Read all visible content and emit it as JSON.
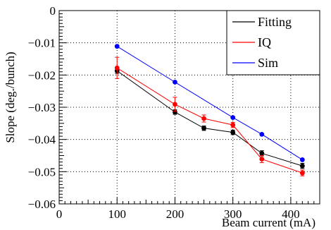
{
  "chart_data": {
    "type": "line",
    "title": "",
    "xlabel": "Beam current (mA)",
    "ylabel": "Slope (deg./bunch)",
    "xlim": [
      0,
      450
    ],
    "ylim": [
      -0.06,
      0
    ],
    "x_ticks": [
      0,
      100,
      200,
      300,
      400
    ],
    "x_tick_labels": [
      "0",
      "100",
      "200",
      "300",
      "400"
    ],
    "y_ticks": [
      0,
      -0.01,
      -0.02,
      -0.03,
      -0.04,
      -0.05,
      -0.06
    ],
    "y_tick_labels": [
      "0",
      "−0.01",
      "−0.02",
      "−0.03",
      "−0.04",
      "−0.05",
      "−0.06"
    ],
    "grid": true,
    "legend_position": "top-right",
    "series": [
      {
        "name": "Fitting",
        "color": "#000000",
        "x": [
          100,
          200,
          250,
          300,
          350,
          420
        ],
        "y": [
          -0.0187,
          -0.0315,
          -0.0365,
          -0.0378,
          -0.0443,
          -0.0482
        ],
        "err": [
          0.0008,
          0.0007,
          0.0007,
          0.0007,
          0.0008,
          0.0008
        ]
      },
      {
        "name": "IQ",
        "color": "#ff0000",
        "x": [
          100,
          200,
          250,
          300,
          350,
          420
        ],
        "y": [
          -0.0178,
          -0.0291,
          -0.0335,
          -0.0355,
          -0.0461,
          -0.0504
        ],
        "err": [
          0.0033,
          0.0022,
          0.0011,
          0.0008,
          0.0011,
          0.0009
        ]
      },
      {
        "name": "Sim",
        "color": "#0000ff",
        "x": [
          100,
          200,
          300,
          350,
          420
        ],
        "y": [
          -0.0111,
          -0.0222,
          -0.0332,
          -0.0384,
          -0.0463
        ],
        "err": [
          0,
          0,
          0,
          0,
          0
        ]
      }
    ]
  }
}
